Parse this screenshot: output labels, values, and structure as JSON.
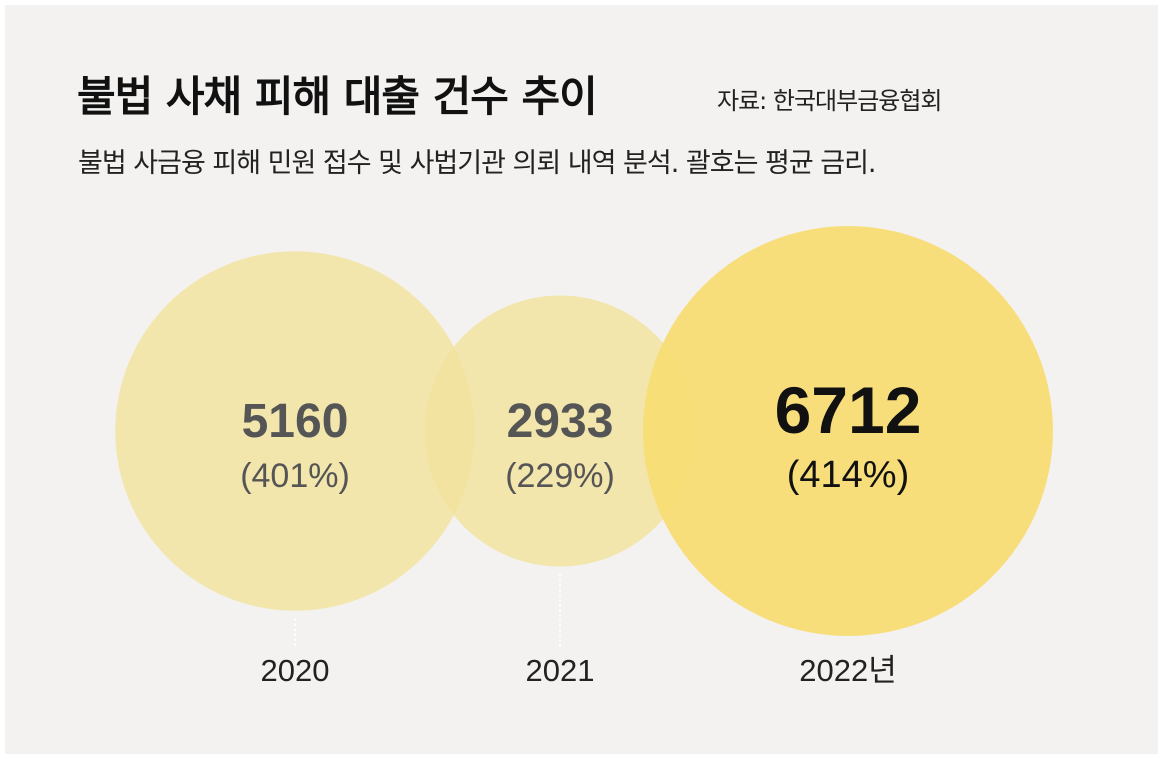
{
  "header": {
    "title": "불법 사채 피해 대출 건수 추이",
    "source": "자료: 한국대부금융협회",
    "subtitle": "불법 사금융 피해 민원 접수 및 사법기관 의뢰 내역 분석. 괄호는 평균 금리."
  },
  "colors": {
    "background": "#f3f2f0",
    "bubble_light": "#f1e39d",
    "bubble_highlight": "#f7dd72",
    "text_dark": "#111111",
    "text_muted": "#555555"
  },
  "chart_data": {
    "type": "bubble",
    "categories": [
      "2020",
      "2021",
      "2022년"
    ],
    "values": [
      5160,
      2933,
      6712
    ],
    "labels": [
      "5160",
      "2933",
      "6712"
    ],
    "rates": [
      401,
      229,
      414
    ],
    "rate_labels": [
      "(401%)",
      "(229%)",
      "(414%)"
    ],
    "highlight_index": 2
  }
}
